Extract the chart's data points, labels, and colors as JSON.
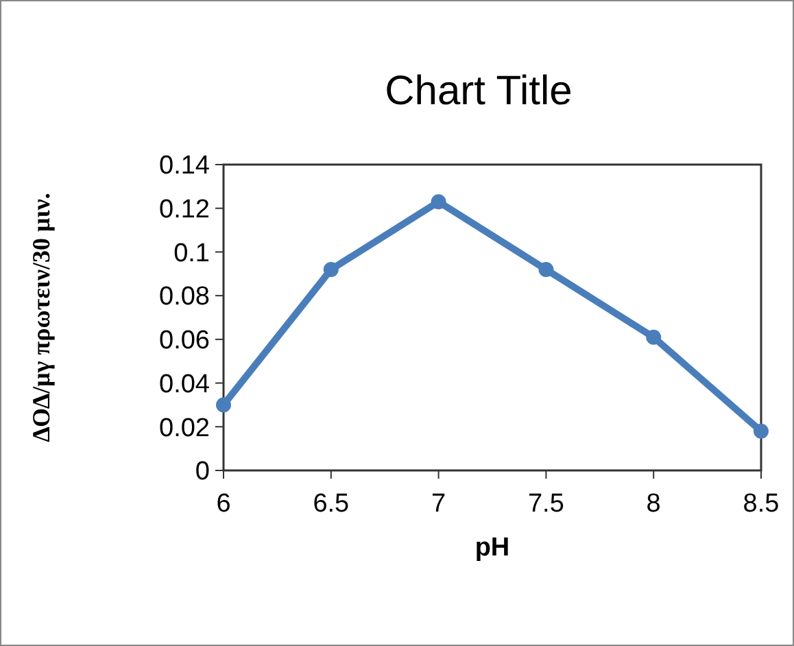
{
  "chart_data": {
    "type": "line",
    "title": "Chart Title",
    "xlabel": "pH",
    "ylabel": "ΔΟΔ/μγ πρωτειν/30  μιν.",
    "x": [
      6,
      6.5,
      7,
      7.5,
      8,
      8.5
    ],
    "series": [
      {
        "color": "#4a7ebb",
        "values": [
          0.03,
          0.092,
          0.123,
          0.092,
          0.061,
          0.018
        ]
      }
    ],
    "xlim": [
      6,
      8.5
    ],
    "xticks": [
      6,
      6.5,
      7,
      7.5,
      8,
      8.5
    ],
    "ylim": [
      0,
      0.14
    ],
    "yticks": [
      0,
      0.02,
      0.04,
      0.06,
      0.08,
      0.1,
      0.12,
      0.14
    ],
    "marker": "circle",
    "line_style": "solid"
  }
}
